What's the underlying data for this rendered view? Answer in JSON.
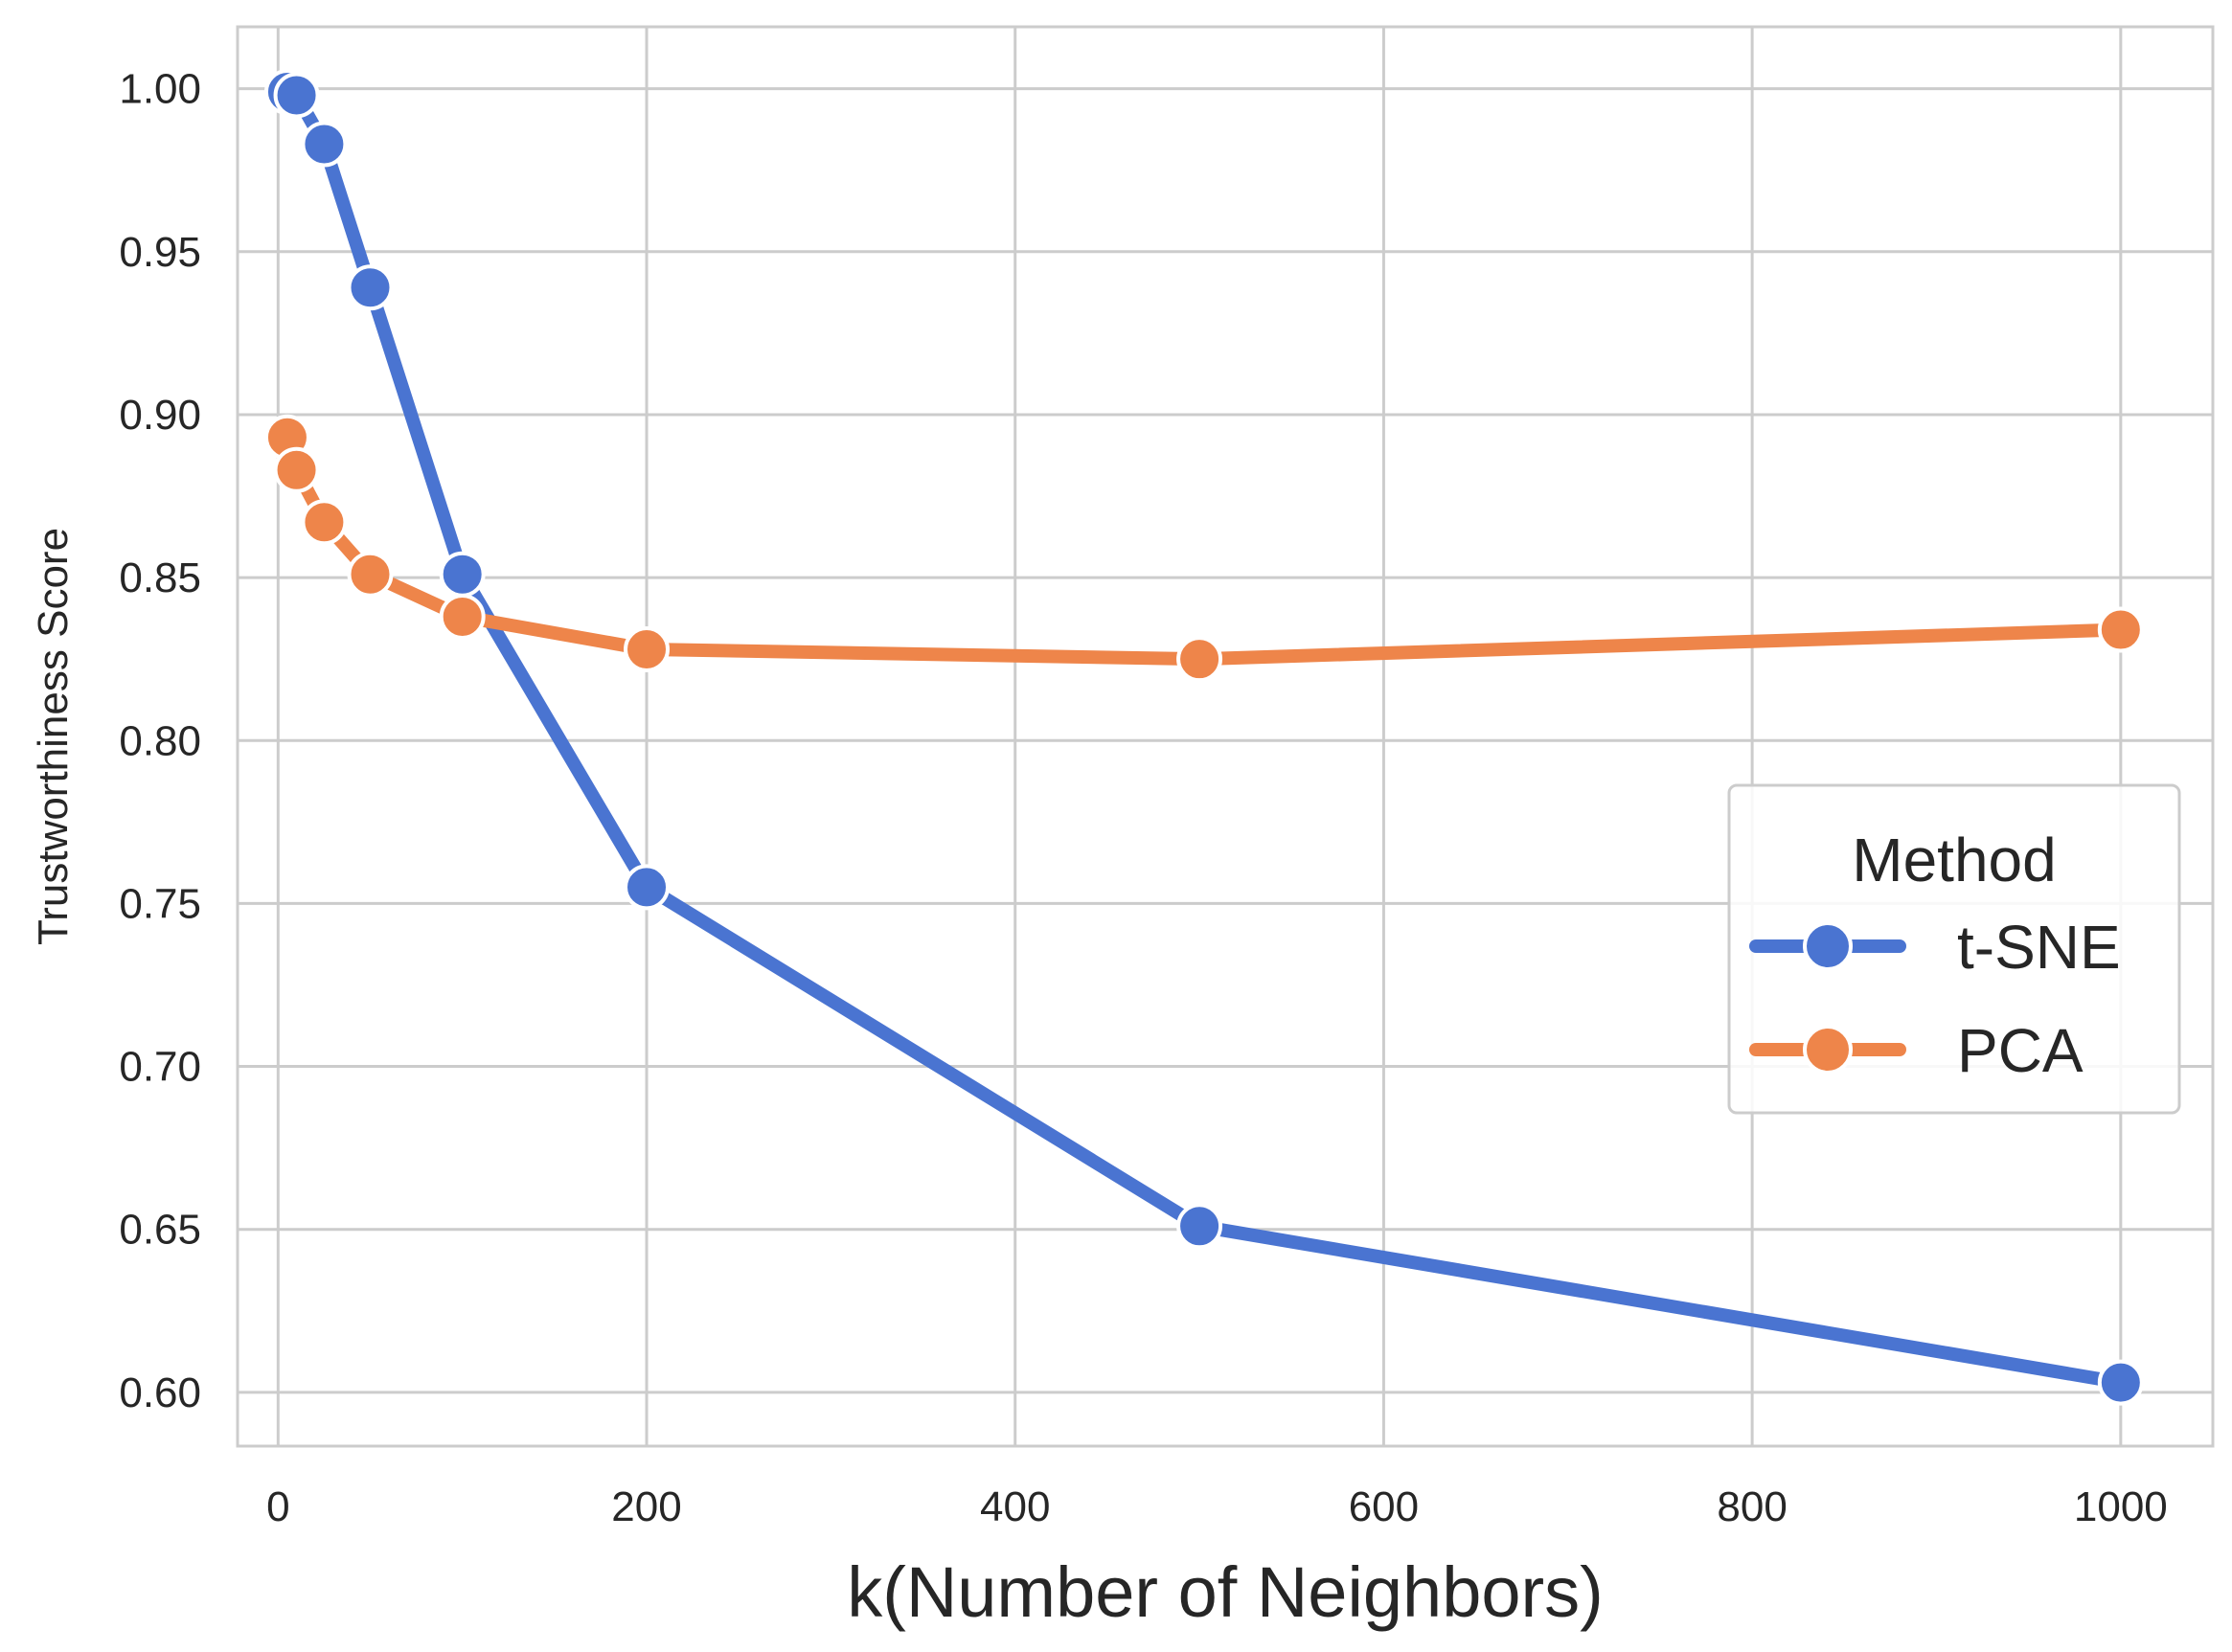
{
  "chart_data": {
    "type": "line",
    "xlabel": "k(Number of Neighbors)",
    "ylabel": "Trustworthiness Score",
    "xlim": [
      -22,
      1050
    ],
    "ylim": [
      0.5835,
      1.019
    ],
    "xticks": [
      0,
      200,
      400,
      600,
      800,
      1000
    ],
    "xtick_labels": [
      "0",
      "200",
      "400",
      "600",
      "800",
      "1000"
    ],
    "yticks": [
      0.6,
      0.65,
      0.7,
      0.75,
      0.8,
      0.85,
      0.9,
      0.95,
      1.0
    ],
    "ytick_labels": [
      "0.60",
      "0.65",
      "0.70",
      "0.75",
      "0.80",
      "0.85",
      "0.90",
      "0.95",
      "1.00"
    ],
    "grid": true,
    "legend": {
      "title": "Method",
      "placement": "center-right"
    },
    "series": [
      {
        "name": "t-SNE",
        "color": "#4a74d1",
        "x": [
          5,
          10,
          25,
          50,
          100,
          200,
          500,
          1000
        ],
        "y": [
          0.999,
          0.998,
          0.983,
          0.939,
          0.851,
          0.755,
          0.651,
          0.603
        ]
      },
      {
        "name": "PCA",
        "color": "#ee854a",
        "x": [
          5,
          10,
          25,
          50,
          100,
          200,
          500,
          1000
        ],
        "y": [
          0.893,
          0.883,
          0.867,
          0.851,
          0.838,
          0.828,
          0.825,
          0.834
        ]
      }
    ]
  }
}
